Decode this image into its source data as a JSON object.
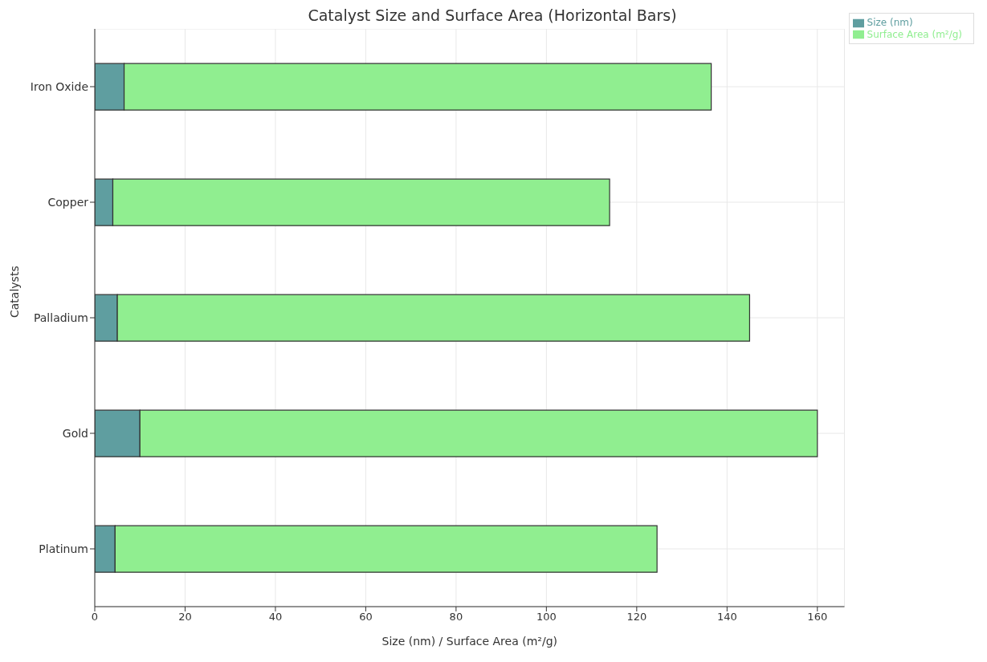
{
  "chart_data": {
    "type": "bar",
    "orientation": "horizontal",
    "stacked": true,
    "title": "Catalyst Size and Surface Area (Horizontal Bars)",
    "xlabel": "Size (nm) / Surface Area (m²/g)",
    "ylabel": "Catalysts",
    "categories": [
      "Iron Oxide",
      "Copper",
      "Palladium",
      "Gold",
      "Platinum"
    ],
    "series": [
      {
        "name": "Size (nm)",
        "color": "#5f9ea0",
        "values": [
          6.5,
          4,
          5,
          10,
          4.5
        ]
      },
      {
        "name": "Surface Area (m²/g)",
        "color": "#90ee90",
        "values": [
          130,
          110,
          140,
          150,
          120
        ]
      }
    ],
    "xlim": [
      0,
      166
    ],
    "xticks": [
      0,
      20,
      40,
      60,
      80,
      100,
      120,
      140,
      160
    ],
    "grid": true,
    "legend": "top right"
  }
}
